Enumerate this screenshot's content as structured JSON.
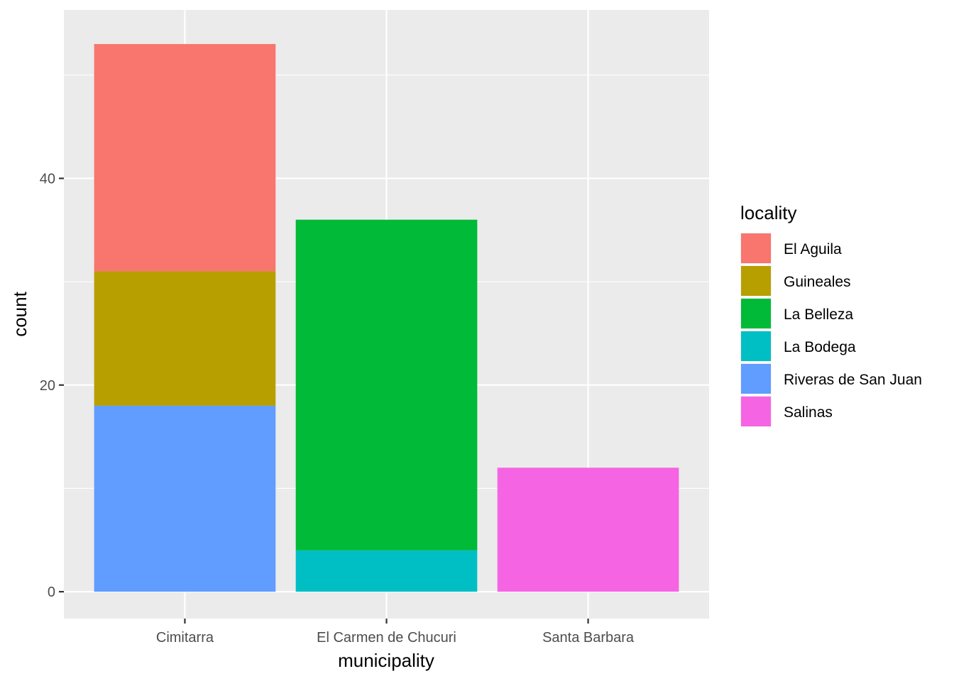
{
  "chart_data": {
    "type": "bar",
    "stacked": true,
    "xlabel": "municipality",
    "ylabel": "count",
    "ylim": [
      -2.6,
      56.3
    ],
    "yticks": [
      0,
      20,
      40
    ],
    "categories": [
      "Cimitarra",
      "El Carmen de Chucuri",
      "Santa Barbara"
    ],
    "legend": {
      "title": "locality",
      "position": "right"
    },
    "series": [
      {
        "name": "El Aguila",
        "color": "#F8766D",
        "values": [
          22,
          0,
          0
        ]
      },
      {
        "name": "Guineales",
        "color": "#B79F00",
        "values": [
          13,
          0,
          0
        ]
      },
      {
        "name": "La Belleza",
        "color": "#00BA38",
        "values": [
          0,
          32,
          0
        ]
      },
      {
        "name": "La Bodega",
        "color": "#00BFC4",
        "values": [
          0,
          4,
          0
        ]
      },
      {
        "name": "Riveras de San Juan",
        "color": "#619CFF",
        "values": [
          18,
          0,
          0
        ]
      },
      {
        "name": "Salinas",
        "color": "#F564E3",
        "values": [
          0,
          0,
          12
        ]
      }
    ],
    "background": "#EBEBEB",
    "grid": true
  }
}
